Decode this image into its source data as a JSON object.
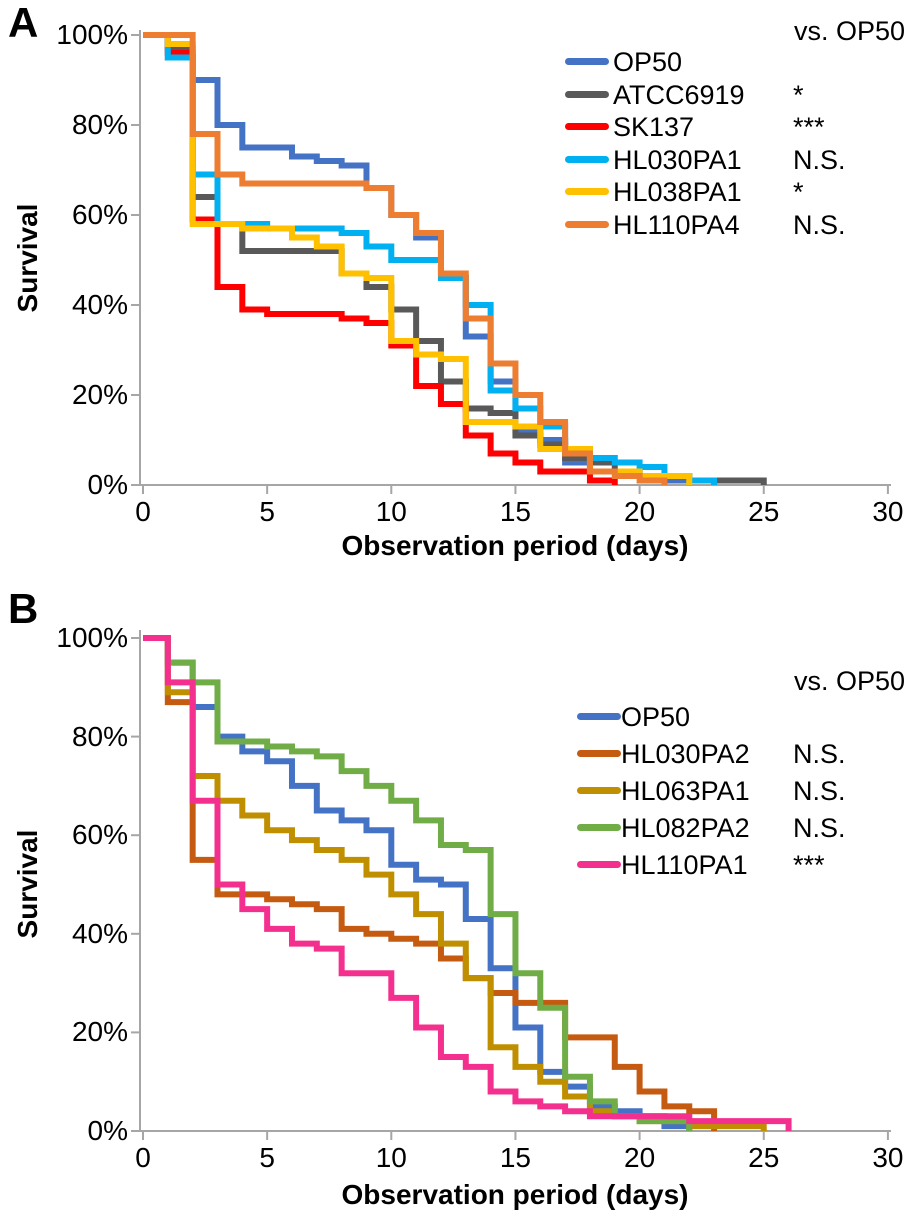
{
  "figure_background": "#FFFFFF",
  "axis_color": "#A6A6A6",
  "text_color": "#000000",
  "chart_data": [
    {
      "type": "line",
      "chart_kind": "kaplan-meier-step-survival",
      "panel_label": "A",
      "ylabel": "Survival",
      "xlabel": "Observation period (days)",
      "legend_header": "vs. OP50",
      "xlim": [
        0,
        30
      ],
      "ylim": [
        0,
        100
      ],
      "x_ticks": [
        0,
        5,
        10,
        15,
        20,
        25,
        30
      ],
      "y_tick_values": [
        100,
        80,
        60,
        40,
        20,
        0
      ],
      "y_tick_labels": [
        "100%",
        "80%",
        "60%",
        "40%",
        "20%",
        "0%"
      ],
      "grid": "off",
      "legend_position": "upper-right-inside",
      "series": [
        {
          "name": "OP50",
          "color": "#4472C4",
          "vs_op50": "",
          "survival_pct_by_day": [
            100,
            95,
            90,
            80,
            75,
            75,
            73,
            72,
            71,
            66,
            60,
            55,
            46,
            33,
            23,
            12,
            10,
            5,
            3,
            3,
            2,
            1,
            1,
            0
          ]
        },
        {
          "name": "ATCC6919",
          "color": "#595959",
          "vs_op50": "*",
          "survival_pct_by_day": [
            100,
            97,
            64,
            58,
            52,
            52,
            52,
            52,
            47,
            44,
            39,
            32,
            23,
            17,
            16,
            11,
            9,
            6,
            5,
            3,
            2,
            2,
            1,
            1,
            1,
            0
          ]
        },
        {
          "name": "SK137",
          "color": "#FF0000",
          "vs_op50": "***",
          "survival_pct_by_day": [
            100,
            96,
            59,
            44,
            39,
            38,
            38,
            38,
            37,
            36,
            31,
            22,
            18,
            11,
            7,
            5,
            3,
            3,
            1,
            0
          ]
        },
        {
          "name": "HL030PA1",
          "color": "#00B0F0",
          "vs_op50": "N.S.",
          "survival_pct_by_day": [
            100,
            95,
            69,
            58,
            58,
            57,
            57,
            57,
            56,
            53,
            50,
            50,
            46,
            40,
            21,
            17,
            13,
            8,
            6,
            5,
            4,
            2,
            1,
            0
          ]
        },
        {
          "name": "HL038PA1",
          "color": "#FFC000",
          "vs_op50": "*",
          "survival_pct_by_day": [
            100,
            98,
            58,
            58,
            57,
            57,
            55,
            53,
            47,
            46,
            32,
            29,
            28,
            14,
            14,
            13,
            8,
            8,
            3,
            3,
            2,
            2,
            0
          ]
        },
        {
          "name": "HL110PA4",
          "color": "#ED7D31",
          "vs_op50": "N.S.",
          "survival_pct_by_day": [
            100,
            100,
            78,
            69,
            67,
            67,
            67,
            67,
            67,
            66,
            60,
            56,
            47,
            37,
            27,
            20,
            14,
            7,
            3,
            2,
            1,
            0
          ]
        }
      ]
    },
    {
      "type": "line",
      "chart_kind": "kaplan-meier-step-survival",
      "panel_label": "B",
      "ylabel": "Survival",
      "xlabel": "Observation period (days)",
      "legend_header": "vs. OP50",
      "xlim": [
        0,
        30
      ],
      "ylim": [
        0,
        100
      ],
      "x_ticks": [
        0,
        5,
        10,
        15,
        20,
        25,
        30
      ],
      "y_tick_values": [
        100,
        80,
        60,
        40,
        20,
        0
      ],
      "y_tick_labels": [
        "100%",
        "80%",
        "60%",
        "40%",
        "20%",
        "0%"
      ],
      "grid": "off",
      "legend_position": "upper-right-inside",
      "series": [
        {
          "name": "OP50",
          "color": "#4472C4",
          "vs_op50": "",
          "survival_pct_by_day": [
            100,
            95,
            86,
            80,
            77,
            75,
            70,
            65,
            63,
            61,
            54,
            51,
            50,
            43,
            33,
            21,
            12,
            9,
            5,
            4,
            3,
            1,
            0
          ]
        },
        {
          "name": "HL030PA2",
          "color": "#C55A11",
          "vs_op50": "N.S.",
          "survival_pct_by_day": [
            100,
            87,
            55,
            48,
            48,
            47,
            46,
            45,
            41,
            40,
            39,
            38,
            35,
            31,
            28,
            26,
            26,
            19,
            19,
            13,
            8,
            5,
            4,
            0
          ]
        },
        {
          "name": "HL063PA1",
          "color": "#BF8F00",
          "vs_op50": "N.S.",
          "survival_pct_by_day": [
            100,
            89,
            72,
            67,
            64,
            61,
            59,
            57,
            55,
            52,
            48,
            44,
            38,
            31,
            17,
            13,
            10,
            7,
            4,
            3,
            2,
            2,
            1,
            1,
            1,
            0
          ]
        },
        {
          "name": "HL082PA2",
          "color": "#70AD47",
          "vs_op50": "N.S.",
          "survival_pct_by_day": [
            100,
            95,
            91,
            79,
            79,
            78,
            77,
            76,
            73,
            70,
            67,
            63,
            58,
            57,
            44,
            32,
            25,
            11,
            6,
            3,
            2,
            2,
            0
          ]
        },
        {
          "name": "HL110PA1",
          "color": "#F4308E",
          "vs_op50": "***",
          "survival_pct_by_day": [
            100,
            91,
            67,
            50,
            45,
            41,
            38,
            37,
            32,
            32,
            27,
            21,
            15,
            13,
            8,
            6,
            5,
            4,
            3,
            3,
            3,
            3,
            2,
            2,
            2,
            2,
            0
          ]
        }
      ]
    }
  ]
}
